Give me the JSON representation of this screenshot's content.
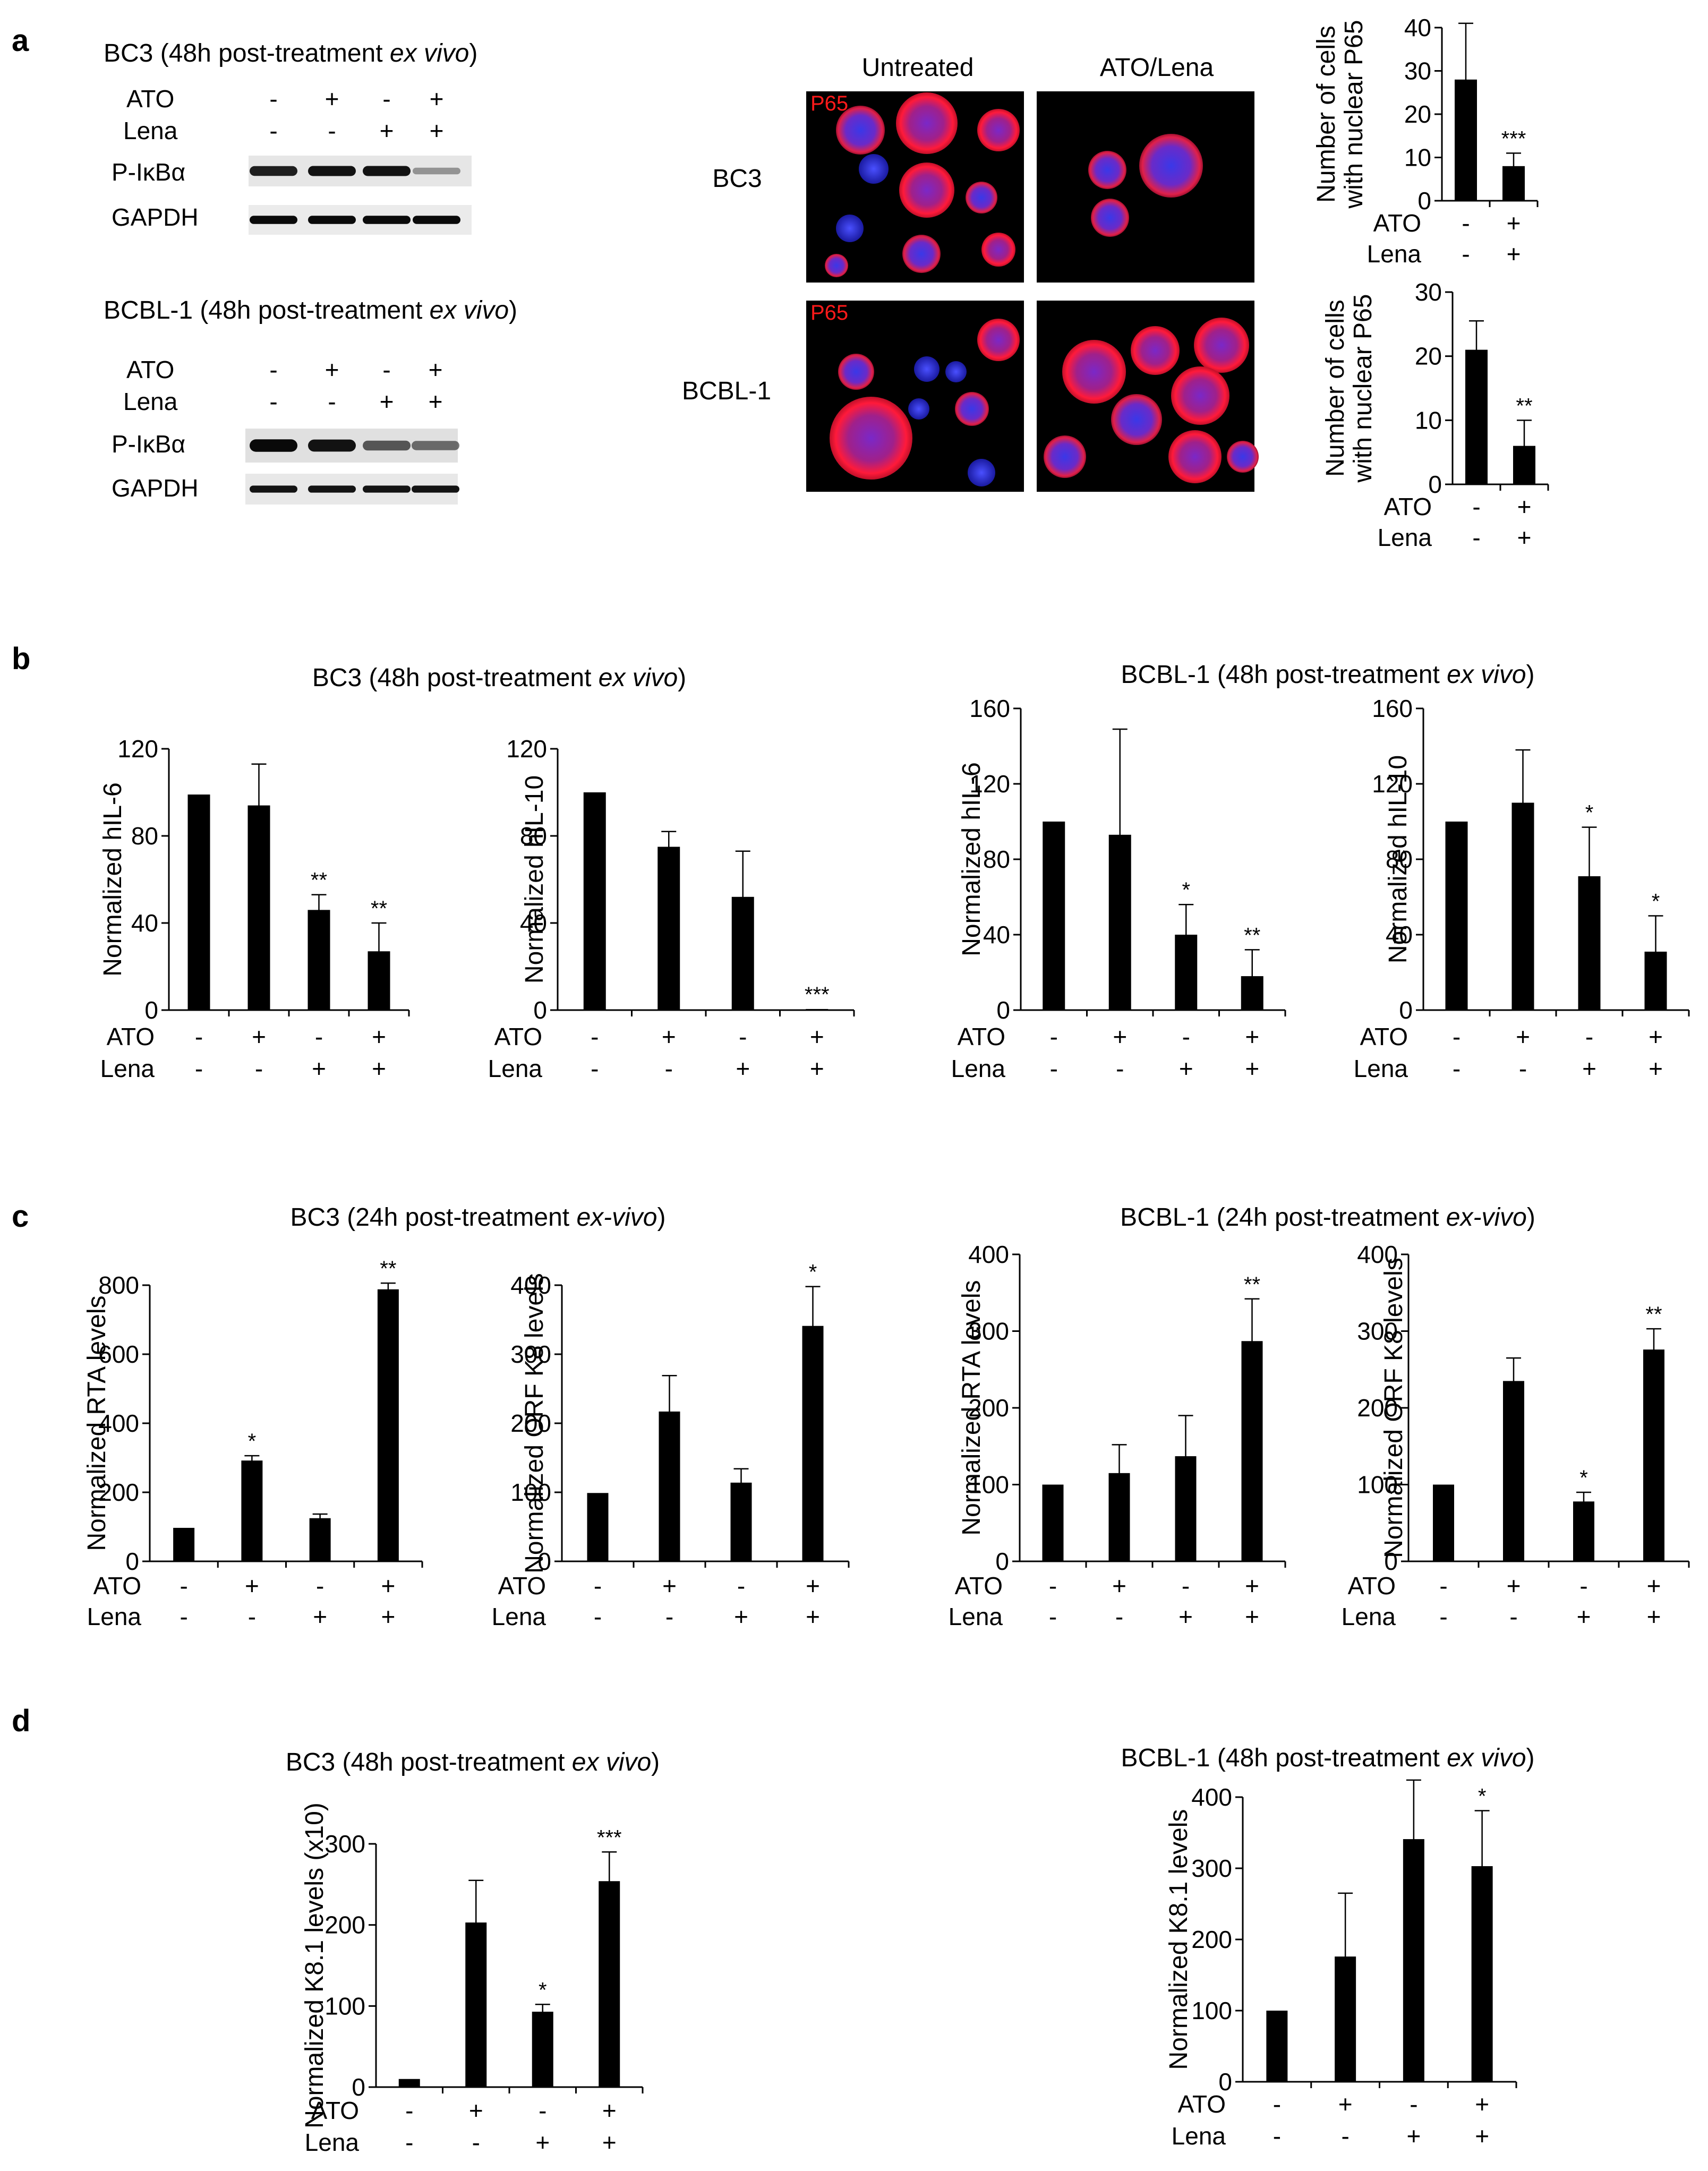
{
  "panel_a": {
    "label": "a",
    "blots": [
      {
        "title": "BC3 (48h post-treatment ex vivo)",
        "title_cell": "BC3 (48h post-treatment ",
        "title_cond": "ex vivo",
        "title_end": ")",
        "rows": [
          "ATO",
          "Lena"
        ],
        "signs": [
          [
            "-",
            "+",
            "-",
            "+"
          ],
          [
            "-",
            "-",
            "+",
            "+"
          ]
        ],
        "bands": [
          "P-IκBα",
          "GAPDH"
        ],
        "band_intensity": [
          [
            0.85,
            0.9,
            0.9,
            0.25
          ],
          [
            0.95,
            0.95,
            0.95,
            0.95
          ]
        ]
      },
      {
        "title": "BCBL-1 (48h post-treatment ex vivo)",
        "title_cell": "BCBL-1 (48h post-treatment ",
        "title_cond": "ex vivo",
        "title_end": ")",
        "rows": [
          "ATO",
          "Lena"
        ],
        "signs": [
          [
            "-",
            "+",
            "-",
            "+"
          ],
          [
            "-",
            "-",
            "+",
            "+"
          ]
        ],
        "bands": [
          "P-IκBα",
          "GAPDH"
        ],
        "band_intensity": [
          [
            0.95,
            0.9,
            0.55,
            0.45
          ],
          [
            0.9,
            0.9,
            0.9,
            0.9
          ]
        ]
      }
    ],
    "microscopy": {
      "columns": [
        "Untreated",
        "ATO/Lena"
      ],
      "rows": [
        "BC3",
        "BCBL-1"
      ],
      "stain_label": "P65"
    }
  },
  "chart_data": [
    {
      "id": "a-bc3",
      "type": "bar",
      "categories": [
        "-/-",
        "+/+"
      ],
      "x_rows": [
        [
          "ATO",
          "-",
          "+"
        ],
        [
          "Lena",
          "-",
          "+"
        ]
      ],
      "values": [
        28,
        8
      ],
      "errors": [
        13,
        3
      ],
      "significance": [
        "",
        "***"
      ],
      "title": "",
      "ylabel": "Number of cells with nuclear P65",
      "ylabel_lines": [
        "Number of cells",
        "with nuclear P65"
      ],
      "ylim": [
        0,
        40
      ],
      "yticks": [
        0,
        10,
        20,
        30,
        40
      ]
    },
    {
      "id": "a-bcbl1",
      "type": "bar",
      "categories": [
        "-/-",
        "+/+"
      ],
      "x_rows": [
        [
          "ATO",
          "-",
          "+"
        ],
        [
          "Lena",
          "-",
          "+"
        ]
      ],
      "values": [
        21,
        6
      ],
      "errors": [
        4.5,
        4
      ],
      "significance": [
        "",
        "**"
      ],
      "title": "",
      "ylabel": "Number of cells with nuclear P65",
      "ylabel_lines": [
        "Number of cells",
        "with nuclear P65"
      ],
      "ylim": [
        0,
        30
      ],
      "yticks": [
        0,
        10,
        20,
        30
      ]
    },
    {
      "id": "b-bc3-il6",
      "type": "bar",
      "categories": [
        "-/-",
        "+/-",
        "-/+",
        "+/+"
      ],
      "x_rows": [
        [
          "ATO",
          "-",
          "+",
          "-",
          "+"
        ],
        [
          "Lena",
          "-",
          "-",
          "+",
          "+"
        ]
      ],
      "values": [
        99,
        94,
        46,
        27
      ],
      "errors": [
        0,
        19,
        7,
        13
      ],
      "significance": [
        "",
        "",
        "**",
        "**"
      ],
      "ylabel": "Normalized hIL-6",
      "ylabel_lines": [
        "Normalized hIL-6"
      ],
      "ylim": [
        0,
        120
      ],
      "yticks": [
        0,
        40,
        80,
        120
      ]
    },
    {
      "id": "b-bc3-il10",
      "type": "bar",
      "categories": [
        "-/-",
        "+/-",
        "-/+",
        "+/+"
      ],
      "x_rows": [
        [
          "ATO",
          "-",
          "+",
          "-",
          "+"
        ],
        [
          "Lena",
          "-",
          "-",
          "+",
          "+"
        ]
      ],
      "values": [
        100,
        75,
        52,
        0.5
      ],
      "errors": [
        0,
        7,
        21,
        0
      ],
      "significance": [
        "",
        "",
        "",
        "***"
      ],
      "ylabel": "Normalized hIL-10",
      "ylabel_lines": [
        "Normalized hIL-10"
      ],
      "ylim": [
        0,
        120
      ],
      "yticks": [
        0,
        40,
        80,
        120
      ]
    },
    {
      "id": "b-bcbl1-il6",
      "type": "bar",
      "categories": [
        "-/-",
        "+/-",
        "-/+",
        "+/+"
      ],
      "x_rows": [
        [
          "ATO",
          "-",
          "+",
          "-",
          "+"
        ],
        [
          "Lena",
          "-",
          "-",
          "+",
          "+"
        ]
      ],
      "values": [
        100,
        93,
        40,
        18
      ],
      "errors": [
        0,
        56,
        16,
        14
      ],
      "significance": [
        "",
        "",
        "*",
        "**"
      ],
      "ylabel": "Normalized hIL-6",
      "ylabel_lines": [
        "Normalized hIL-6"
      ],
      "ylim": [
        0,
        160
      ],
      "yticks": [
        0,
        40,
        80,
        120,
        160
      ]
    },
    {
      "id": "b-bcbl1-il10",
      "type": "bar",
      "categories": [
        "-/-",
        "+/-",
        "-/+",
        "+/+"
      ],
      "x_rows": [
        [
          "ATO",
          "-",
          "+",
          "-",
          "+"
        ],
        [
          "Lena",
          "-",
          "-",
          "+",
          "+"
        ]
      ],
      "values": [
        100,
        110,
        71,
        31
      ],
      "errors": [
        0,
        28,
        26,
        19
      ],
      "significance": [
        "",
        "",
        "*",
        "*"
      ],
      "ylabel": "Normalized hIL-10",
      "ylabel_lines": [
        "Normalized hIL-10"
      ],
      "ylim": [
        0,
        160
      ],
      "yticks": [
        0,
        40,
        80,
        120,
        160
      ]
    },
    {
      "id": "c-bc3-rta",
      "type": "bar",
      "categories": [
        "-/-",
        "+/-",
        "-/+",
        "+/+"
      ],
      "x_rows": [
        [
          "ATO",
          "-",
          "+",
          "-",
          "+"
        ],
        [
          "Lena",
          "-",
          "-",
          "+",
          "+"
        ]
      ],
      "values": [
        97,
        292,
        125,
        788
      ],
      "errors": [
        0,
        14,
        12,
        18
      ],
      "significance": [
        "",
        "*",
        "",
        "**"
      ],
      "ylabel": "Normalized RTA levels",
      "ylabel_lines": [
        "Normalized RTA levels"
      ],
      "ylim": [
        0,
        800
      ],
      "yticks": [
        0,
        200,
        400,
        600,
        800
      ]
    },
    {
      "id": "c-bc3-k8",
      "type": "bar",
      "categories": [
        "-/-",
        "+/-",
        "-/+",
        "+/+"
      ],
      "x_rows": [
        [
          "ATO",
          "-",
          "+",
          "-",
          "+"
        ],
        [
          "Lena",
          "-",
          "-",
          "+",
          "+"
        ]
      ],
      "values": [
        99,
        217,
        114,
        341
      ],
      "errors": [
        0,
        52,
        20,
        57
      ],
      "significance": [
        "",
        "",
        "",
        "*"
      ],
      "ylabel": "Normalized ORF K8 levels",
      "ylabel_lines": [
        "Normalized ORF K8 levels"
      ],
      "ylim": [
        0,
        400
      ],
      "yticks": [
        0,
        100,
        200,
        300,
        400
      ]
    },
    {
      "id": "c-bcbl1-rta",
      "type": "bar",
      "categories": [
        "-/-",
        "+/-",
        "-/+",
        "+/+"
      ],
      "x_rows": [
        [
          "ATO",
          "-",
          "+",
          "-",
          "+"
        ],
        [
          "Lena",
          "-",
          "-",
          "+",
          "+"
        ]
      ],
      "values": [
        100,
        115,
        137,
        287
      ],
      "errors": [
        0,
        37,
        53,
        55
      ],
      "significance": [
        "",
        "",
        "",
        "**"
      ],
      "ylabel": "Normalized RTA levels",
      "ylabel_lines": [
        "Normalized RTA levels"
      ],
      "ylim": [
        0,
        400
      ],
      "yticks": [
        0,
        100,
        200,
        300,
        400
      ]
    },
    {
      "id": "c-bcbl1-k8",
      "type": "bar",
      "categories": [
        "-/-",
        "+/-",
        "-/+",
        "+/+"
      ],
      "x_rows": [
        [
          "ATO",
          "-",
          "+",
          "-",
          "+"
        ],
        [
          "Lena",
          "-",
          "-",
          "+",
          "+"
        ]
      ],
      "values": [
        100,
        235,
        78,
        276
      ],
      "errors": [
        0,
        30,
        12,
        27
      ],
      "significance": [
        "",
        "",
        "*",
        "**"
      ],
      "ylabel": "Normalized ORF K8 levels",
      "ylabel_lines": [
        "Normalized ORF K8 levels"
      ],
      "ylim": [
        0,
        400
      ],
      "yticks": [
        0,
        100,
        200,
        300,
        400
      ]
    },
    {
      "id": "d-bc3",
      "type": "bar",
      "categories": [
        "-/-",
        "+/-",
        "-/+",
        "+/+"
      ],
      "x_rows": [
        [
          "ATO",
          "-",
          "+",
          "-",
          "+"
        ],
        [
          "Lena",
          "-",
          "-",
          "+",
          "+"
        ]
      ],
      "values": [
        10,
        203,
        93,
        254
      ],
      "errors": [
        0,
        52,
        9,
        36
      ],
      "significance": [
        "",
        "",
        "*",
        "***"
      ],
      "ylabel": "Normalized K8.1 levels (x10)",
      "ylabel_lines": [
        "Normalized K8.1 levels (x10)"
      ],
      "ylim": [
        0,
        300
      ],
      "yticks": [
        0,
        100,
        200,
        300
      ]
    },
    {
      "id": "d-bcbl1",
      "type": "bar",
      "categories": [
        "-/-",
        "+/-",
        "-/+",
        "+/+"
      ],
      "x_rows": [
        [
          "ATO",
          "-",
          "+",
          "-",
          "+"
        ],
        [
          "Lena",
          "-",
          "-",
          "+",
          "+"
        ]
      ],
      "values": [
        100,
        176,
        341,
        303
      ],
      "errors": [
        0,
        89,
        83,
        78
      ],
      "significance": [
        "",
        "",
        "",
        "*"
      ],
      "ylabel": "Normalized K8.1 levels",
      "ylabel_lines": [
        "Normalized K8.1 levels"
      ],
      "ylim": [
        0,
        400
      ],
      "yticks": [
        0,
        100,
        200,
        300,
        400
      ]
    }
  ],
  "panel_b": {
    "label": "b",
    "titles": [
      {
        "cell": "BC3 (48h post-treatment ",
        "cond": "ex vivo",
        "end": ")"
      },
      {
        "cell": "BCBL-1 (48h post-treatment ",
        "cond": "ex vivo",
        "end": ")"
      }
    ]
  },
  "panel_c": {
    "label": "c",
    "titles": [
      {
        "cell": "BC3 (24h post-treatment ",
        "cond": "ex-vivo",
        "end": ")"
      },
      {
        "cell": "BCBL-1 (24h post-treatment ",
        "cond": "ex-vivo",
        "end": ")"
      }
    ]
  },
  "panel_d": {
    "label": "d",
    "titles": [
      {
        "cell": "BC3 (48h post-treatment ",
        "cond": "ex vivo",
        "end": ")"
      },
      {
        "cell": "BCBL-1 (48h post-treatment ",
        "cond": "ex vivo",
        "end": ")"
      }
    ]
  }
}
